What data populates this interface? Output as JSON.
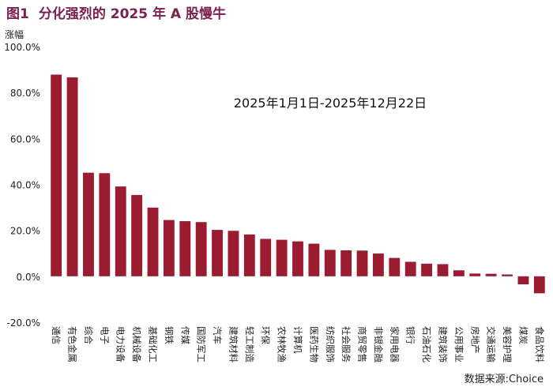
{
  "figure": {
    "label": "图1",
    "title": "分化强烈的 2025 年 A 股慢牛",
    "source": "数据来源:Choice"
  },
  "chart_data": {
    "type": "bar",
    "title": "分化强烈的 2025 年 A 股慢牛",
    "annotation": "2025年1月1日-2025年12月22日",
    "ylabel": "涨幅",
    "xlabel": "",
    "ylim": [
      -20,
      100
    ],
    "yticks": [
      -20,
      0,
      20,
      40,
      60,
      80,
      100
    ],
    "ytick_labels": [
      "-20.0%",
      "0.0%",
      "20.0%",
      "40.0%",
      "60.0%",
      "80.0%",
      "100.0%"
    ],
    "grid": false,
    "bar_color": "#9b1c31",
    "categories": [
      "通信",
      "有色金属",
      "综合",
      "电子",
      "电力设备",
      "机械设备",
      "基础化工",
      "钢铁",
      "传媒",
      "国防军工",
      "汽车",
      "建筑材料",
      "轻工制造",
      "环保",
      "农林牧渔",
      "计算机",
      "医药生物",
      "纺织服饰",
      "社会服务",
      "商贸零售",
      "非银金融",
      "家用电器",
      "银行",
      "石油石化",
      "建筑装饰",
      "公用事业",
      "房地产",
      "交通运输",
      "美容护理",
      "煤炭",
      "食品饮料"
    ],
    "values": [
      87.8,
      86.6,
      45.1,
      44.9,
      39.1,
      35.4,
      29.9,
      24.5,
      24.0,
      23.6,
      20.2,
      19.8,
      18.2,
      16.3,
      15.9,
      15.2,
      14.2,
      11.5,
      11.3,
      11.2,
      9.9,
      8.0,
      6.3,
      5.5,
      5.3,
      2.6,
      1.2,
      1.1,
      0.8,
      -3.5,
      -7.4
    ]
  }
}
